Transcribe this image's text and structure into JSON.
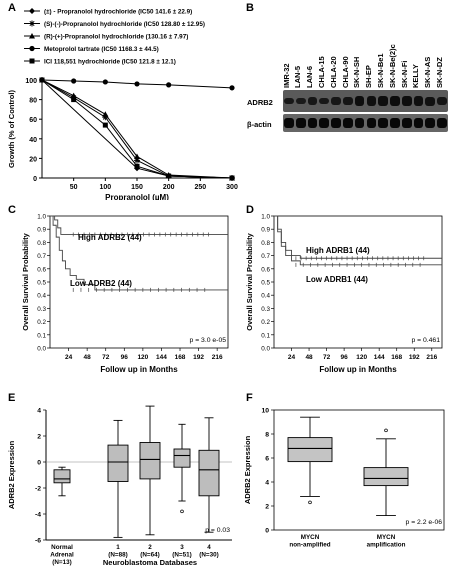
{
  "panels": {
    "A": "A",
    "B": "B",
    "C": "C",
    "D": "D",
    "E": "E",
    "F": "F"
  },
  "chart_data": [
    {
      "panel": "A",
      "type": "line",
      "xlabel": "Propranolol (µM)",
      "ylabel": "Growth (% of Control)",
      "xlim": [
        0,
        300
      ],
      "ylim": [
        0,
        100
      ],
      "xticks": [
        50,
        100,
        150,
        200,
        250,
        300
      ],
      "yticks": [
        0,
        20,
        40,
        60,
        80,
        100
      ],
      "series": [
        {
          "name": "(±) - Propranolol hydrochloride (IC50 141.6 ± 22.9)",
          "marker": "diamond",
          "x": [
            0,
            150,
            200,
            300
          ],
          "y": [
            100,
            10,
            2,
            0
          ]
        },
        {
          "name": "(S)-(-)-Propranolol hydrochloride (IC50 128.80 ± 12.95)",
          "marker": "star",
          "x": [
            0,
            50,
            100,
            150,
            200,
            300
          ],
          "y": [
            100,
            82,
            62,
            18,
            2,
            0
          ]
        },
        {
          "name": "(R)-(+)-Propranolol hydrochloride (130.16 ± 7.97)",
          "marker": "triangle",
          "x": [
            0,
            50,
            100,
            150,
            200,
            300
          ],
          "y": [
            100,
            84,
            65,
            22,
            3,
            0
          ]
        },
        {
          "name": "Metoprolol tartrate (IC50 1168.3 ± 44.5)",
          "marker": "circle",
          "x": [
            0,
            50,
            100,
            150,
            200,
            300
          ],
          "y": [
            100,
            99,
            98,
            96,
            95,
            92
          ]
        },
        {
          "name": "ICI 118,551 hydrochloride (IC50 121.8 ± 12.1)",
          "marker": "square",
          "x": [
            0,
            50,
            100,
            150,
            200,
            300
          ],
          "y": [
            100,
            80,
            54,
            12,
            2,
            0
          ]
        }
      ]
    },
    {
      "panel": "C",
      "type": "line",
      "xlabel": "Follow up in Months",
      "ylabel": "Overall Survival Probability",
      "xlim": [
        0,
        230
      ],
      "ylim": [
        0,
        1
      ],
      "xticks": [
        24,
        48,
        72,
        96,
        120,
        144,
        168,
        192,
        216
      ],
      "yticks": [
        0.0,
        0.1,
        0.2,
        0.3,
        0.4,
        0.5,
        0.6,
        0.7,
        0.8,
        0.9,
        1.0
      ],
      "annotation": "p = 3.0 e-05",
      "series": [
        {
          "name": "High ADRB2 (44)",
          "x": [
            0,
            6,
            10,
            14,
            230
          ],
          "y": [
            1.0,
            0.97,
            0.91,
            0.86,
            0.86
          ]
        },
        {
          "name": "Low ADRB2 (44)",
          "x": [
            0,
            4,
            8,
            12,
            16,
            20,
            26,
            34,
            44,
            58,
            230
          ],
          "y": [
            1.0,
            0.93,
            0.84,
            0.74,
            0.66,
            0.6,
            0.55,
            0.52,
            0.48,
            0.44,
            0.44
          ]
        }
      ]
    },
    {
      "panel": "D",
      "type": "line",
      "xlabel": "Follow up in Months",
      "ylabel": "Overall Survival Probability",
      "xlim": [
        0,
        230
      ],
      "ylim": [
        0,
        1
      ],
      "xticks": [
        24,
        48,
        72,
        96,
        120,
        144,
        168,
        192,
        216
      ],
      "yticks": [
        0.0,
        0.1,
        0.2,
        0.3,
        0.4,
        0.5,
        0.6,
        0.7,
        0.8,
        0.9,
        1.0
      ],
      "annotation": "p = 0.461",
      "series": [
        {
          "name": "High ADRB1 (44)",
          "x": [
            0,
            5,
            10,
            16,
            24,
            36,
            230
          ],
          "y": [
            1.0,
            0.9,
            0.8,
            0.74,
            0.7,
            0.68,
            0.68
          ]
        },
        {
          "name": "Low ADRB1 (44)",
          "x": [
            0,
            5,
            10,
            16,
            24,
            36,
            230
          ],
          "y": [
            1.0,
            0.88,
            0.77,
            0.7,
            0.66,
            0.63,
            0.63
          ]
        }
      ]
    },
    {
      "panel": "E",
      "type": "bar",
      "subtype": "box",
      "ylabel": "ADRB2 Expression",
      "xlabel": "Neuroblastoma Databases",
      "ylim": [
        -6,
        4
      ],
      "yticks": [
        -6,
        -4,
        -2,
        0,
        2,
        4
      ],
      "annotation": "p = 0.03",
      "categories": [
        "Normal Adrenal (N=13)",
        "1 (N=88)",
        "2 (N=64)",
        "3 (N=51)",
        "4 (N=30)"
      ],
      "category_lines": [
        [
          "Normal",
          "Adrenal",
          "(N=13)"
        ],
        [
          "1",
          "(N=88)"
        ],
        [
          "2",
          "(N=64)"
        ],
        [
          "3",
          "(N=51)"
        ],
        [
          "4",
          "(N=30)"
        ]
      ],
      "boxes": [
        {
          "min": -2.6,
          "q1": -1.6,
          "median": -1.3,
          "q3": -0.6,
          "max": -0.4
        },
        {
          "min": -5.8,
          "q1": -1.5,
          "median": 0.0,
          "q3": 1.3,
          "max": 3.2
        },
        {
          "min": -5.6,
          "q1": -1.3,
          "median": 0.2,
          "q3": 1.5,
          "max": 4.3
        },
        {
          "min": -3.0,
          "q1": -0.4,
          "median": 0.5,
          "q3": 1.0,
          "max": 2.9,
          "outliers": [
            -3.8
          ]
        },
        {
          "min": -5.4,
          "q1": -2.6,
          "median": -0.6,
          "q3": 0.9,
          "max": 3.4
        }
      ]
    },
    {
      "panel": "F",
      "type": "bar",
      "subtype": "box",
      "ylabel": "ADRB2 Expression",
      "ylim": [
        0,
        10
      ],
      "yticks": [
        0,
        2,
        4,
        6,
        8,
        10
      ],
      "annotation": "p = 2.2 e-06",
      "categories": [
        "MYCN non-amplified",
        "MYCN amplification"
      ],
      "category_lines": [
        [
          "MYCN",
          "non-amplified"
        ],
        [
          "MYCN",
          "amplification"
        ]
      ],
      "boxes": [
        {
          "min": 2.8,
          "q1": 5.7,
          "median": 6.8,
          "q3": 7.7,
          "max": 9.4,
          "outliers": [
            2.3
          ]
        },
        {
          "min": 1.2,
          "q1": 3.7,
          "median": 4.3,
          "q3": 5.2,
          "max": 7.6,
          "outliers": [
            8.3
          ]
        }
      ]
    }
  ],
  "blot": {
    "cell_lines": [
      "IMR-32",
      "LAN-5",
      "LAN-6",
      "CHLA-15",
      "CHLA-20",
      "CHLA-90",
      "SK-N-SH",
      "SH-EP",
      "SK-N-Be1",
      "SK-N-Be(2)c",
      "SK-N-Fi",
      "KELLY",
      "SK-N-AS",
      "SK-N-DZ"
    ],
    "rows": [
      "ADRB2",
      "β-actin"
    ],
    "adrb2_intensity": [
      0.55,
      0.5,
      0.6,
      0.55,
      0.6,
      0.65,
      0.85,
      0.8,
      0.85,
      0.9,
      0.85,
      0.8,
      0.75,
      0.65
    ]
  }
}
